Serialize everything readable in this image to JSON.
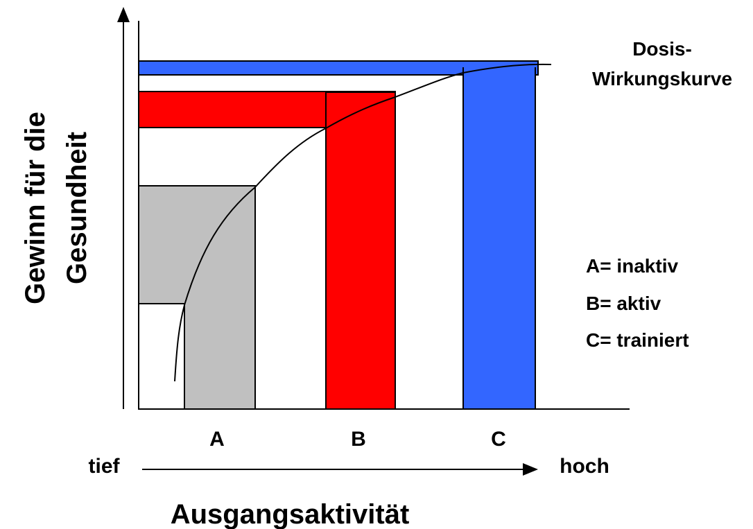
{
  "y_axis_label": [
    "Gewinn für die",
    "Gesundheit"
  ],
  "x_axis_label": "Ausgangsaktivität",
  "x_axis_low": "tief",
  "x_axis_high": "hoch",
  "curve_label": [
    "Dosis-",
    "Wirkungskurve"
  ],
  "categories": [
    "A",
    "B",
    "C"
  ],
  "legend": [
    "A= inaktiv",
    "B= aktiv",
    "C= trainiert"
  ]
}
